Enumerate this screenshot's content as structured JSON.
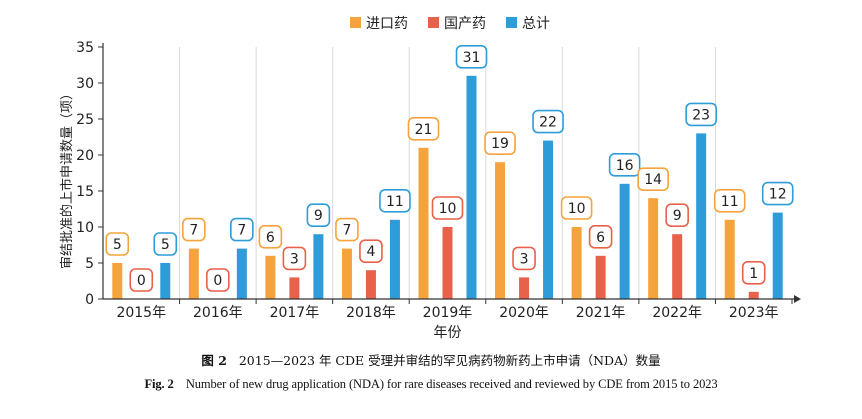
{
  "chart_data": {
    "type": "bar",
    "categories": [
      "2015年",
      "2016年",
      "2017年",
      "2018年",
      "2019年",
      "2020年",
      "2021年",
      "2022年",
      "2023年"
    ],
    "series": [
      {
        "name": "进口药",
        "color": "#F5A33C",
        "values": [
          5,
          7,
          6,
          7,
          21,
          19,
          10,
          14,
          11
        ]
      },
      {
        "name": "国产药",
        "color": "#E8614A",
        "values": [
          0,
          0,
          3,
          4,
          10,
          3,
          6,
          9,
          1
        ]
      },
      {
        "name": "总计",
        "color": "#2E9CD8",
        "values": [
          5,
          7,
          9,
          11,
          31,
          22,
          16,
          23,
          12
        ]
      }
    ],
    "xlabel": "年份",
    "ylabel": "审结批准的上市申请数量（项）",
    "ylim": [
      0,
      35
    ],
    "yticks": [
      0,
      5,
      10,
      15,
      20,
      25,
      30,
      35
    ],
    "legend_position": "top-center"
  },
  "caption": {
    "zh_label": "图 2",
    "zh_text": "2015—2023 年 CDE 受理并审结的罕见病药物新药上市申请（NDA）数量",
    "en_label": "Fig. 2",
    "en_text": "Number of new drug application (NDA) for rare diseases received and reviewed by CDE from 2015 to 2023"
  }
}
